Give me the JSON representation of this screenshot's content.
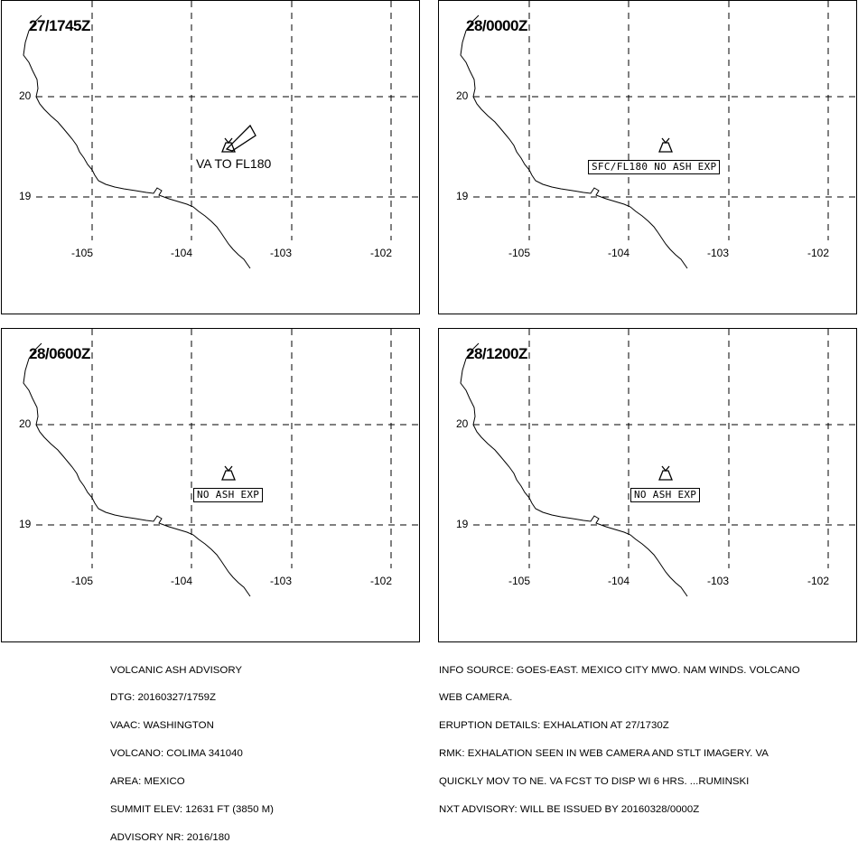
{
  "panels": [
    {
      "title": "27/1745Z",
      "label": "VA TO FL180",
      "label_style": "plain",
      "show_plume": true
    },
    {
      "title": "28/0000Z",
      "label": "SFC/FL180 NO ASH EXP",
      "label_style": "boxed",
      "show_plume": false
    },
    {
      "title": "28/0600Z",
      "label": "NO ASH EXP",
      "label_style": "boxed",
      "show_plume": false
    },
    {
      "title": "28/1200Z",
      "label": "NO ASH EXP",
      "label_style": "boxed",
      "show_plume": false
    }
  ],
  "lat_labels": [
    "20",
    "19"
  ],
  "lon_labels": [
    "-105",
    "-104",
    "-103",
    "-102"
  ],
  "advisory_left": [
    "VOLCANIC ASH ADVISORY",
    "DTG: 20160327/1759Z",
    "VAAC: WASHINGTON",
    "VOLCANO: COLIMA 341040",
    "AREA: MEXICO",
    "SUMMIT ELEV: 12631 FT (3850 M)",
    "ADVISORY NR: 2016/180"
  ],
  "advisory_right": [
    "INFO SOURCE: GOES-EAST. MEXICO CITY MWO. NAM WINDS. VOLCANO",
    "WEB CAMERA.",
    "ERUPTION DETAILS: EXHALATION AT 27/1730Z",
    "RMK: EXHALATION SEEN IN WEB CAMERA AND STLT IMAGERY. VA",
    "QUICKLY MOV TO NE. VA FCST TO DISP WI 6 HRS. ...RUMINSKI",
    "NXT ADVISORY: WILL BE ISSUED BY 20160328/0000Z"
  ],
  "icons": {
    "volcano": "volcano-icon",
    "plume": "ash-plume-polygon"
  }
}
